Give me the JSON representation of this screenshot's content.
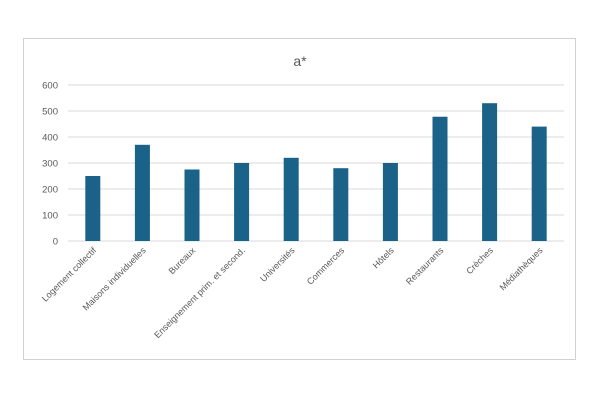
{
  "chart_data": {
    "type": "bar",
    "title": "a*",
    "xlabel": "",
    "ylabel": "",
    "categories": [
      "Logement collectif",
      "Maisons individuelles",
      "Bureaux",
      "Enseignement prim. et second.",
      "Universités",
      "Commerces",
      "Hôtels",
      "Restaurants",
      "Crèches",
      "Médiathèques"
    ],
    "values": [
      250,
      370,
      275,
      300,
      320,
      280,
      300,
      478,
      530,
      440
    ],
    "ylim": [
      0,
      600
    ],
    "yticks": [
      "0",
      "100",
      "200",
      "300",
      "400",
      "500",
      "600"
    ],
    "grid": true,
    "bar_color": "#1a6287",
    "grid_color": "#d9d9d9"
  }
}
